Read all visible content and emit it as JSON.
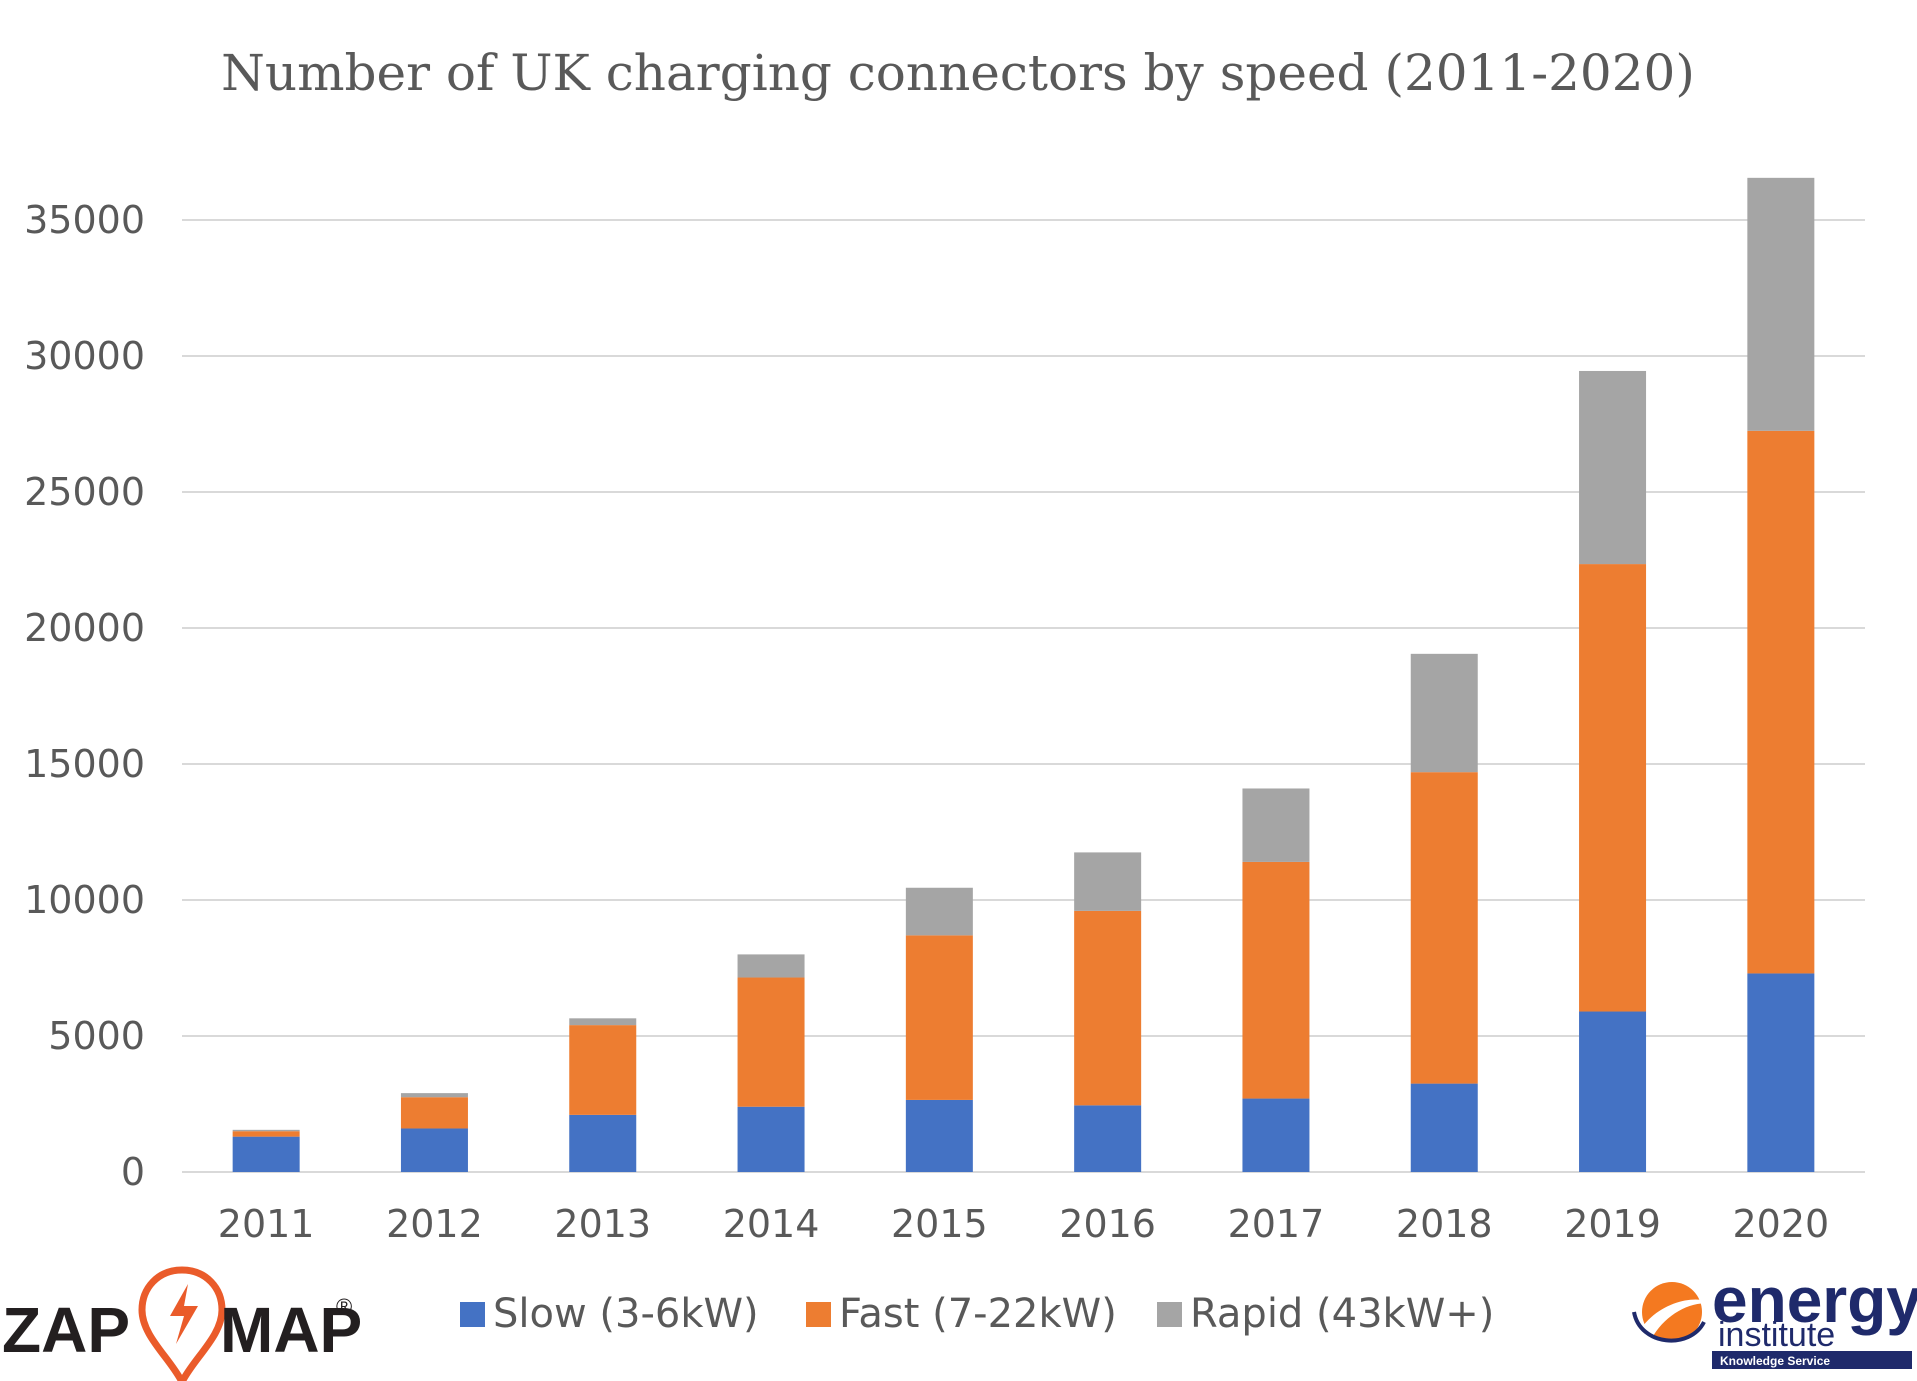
{
  "chart_data": {
    "type": "bar",
    "stacked": true,
    "title": "Number of UK charging connectors by speed (2011-2020)",
    "xlabel": "",
    "ylabel": "",
    "ylim": [
      0,
      35000
    ],
    "yticks": [
      "0",
      "5000",
      "10000",
      "15000",
      "20000",
      "25000",
      "30000",
      "35000"
    ],
    "grid": true,
    "legend_position": "bottom",
    "categories": [
      "2011",
      "2012",
      "2013",
      "2014",
      "2015",
      "2016",
      "2017",
      "2018",
      "2019",
      "2020"
    ],
    "series": [
      {
        "name": "Slow (3-6kW)",
        "color": "#4472c4",
        "values": [
          1300,
          1600,
          2100,
          2400,
          2650,
          2450,
          2700,
          3250,
          5900,
          7300
        ]
      },
      {
        "name": "Fast (7-22kW)",
        "color": "#ed7d31",
        "values": [
          200,
          1150,
          3300,
          4750,
          6050,
          7150,
          8700,
          11450,
          16450,
          19950
        ]
      },
      {
        "name": "Rapid (43kW+)",
        "color": "#a5a5a5",
        "values": [
          50,
          150,
          250,
          850,
          1750,
          2150,
          2700,
          4350,
          7100,
          9300
        ]
      }
    ]
  },
  "logos": {
    "zapmap": {
      "left": "ZAP",
      "right": "MAP",
      "mark": "®",
      "icon": "lightning-pin-icon",
      "color": "#ea5b2a"
    },
    "energy_institute": {
      "line1": "energy",
      "line2": "institute",
      "tagline": "Knowledge Service",
      "icon": "globe-swirl-icon",
      "color": "#f47920"
    }
  }
}
